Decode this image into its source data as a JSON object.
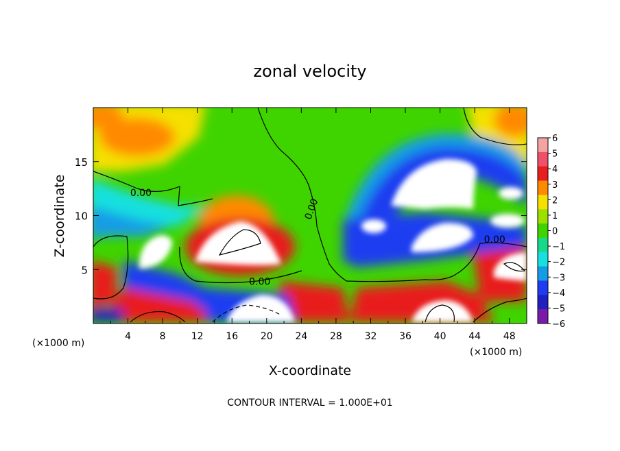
{
  "chart_data": {
    "type": "heatmap",
    "title": "zonal velocity",
    "xlabel": "X-coordinate",
    "ylabel": "Z-coordinate",
    "x_unit_left": "(×1000 m)",
    "x_unit_right": "(×1000 m)",
    "xlim": [
      0,
      50
    ],
    "ylim": [
      0,
      20
    ],
    "x_ticks": [
      4,
      8,
      12,
      16,
      20,
      24,
      28,
      32,
      36,
      40,
      44,
      48
    ],
    "y_ticks": [
      5,
      10,
      15
    ],
    "colorbar": {
      "ticks": [
        6,
        5,
        4,
        3,
        2,
        1,
        0,
        -1,
        -2,
        -3,
        -4,
        -5,
        -6
      ],
      "labels": [
        "6",
        "5",
        "4",
        "3",
        "2",
        "1",
        "0",
        "−1",
        "−2",
        "−3",
        "−4",
        "−5",
        "−6"
      ],
      "colors": [
        "#f4a3a3",
        "#f0506a",
        "#e81e1e",
        "#ff8a00",
        "#f5e000",
        "#9de000",
        "#3fd400",
        "#16d98a",
        "#16e0e0",
        "#149de6",
        "#1e3cf0",
        "#2020c0",
        "#7a1aa8"
      ]
    },
    "contour_labels": [
      {
        "text": "0.00",
        "x": 5.5,
        "y": 11.8
      },
      {
        "text": "0.00",
        "x": 19.2,
        "y": 3.6
      },
      {
        "text": "0.00",
        "x": 46.3,
        "y": 7.5
      },
      {
        "text": "0.00",
        "x": 25.5,
        "y": 10.5
      }
    ],
    "contour_note": "CONTOUR INTERVAL = 1.000E+01"
  }
}
